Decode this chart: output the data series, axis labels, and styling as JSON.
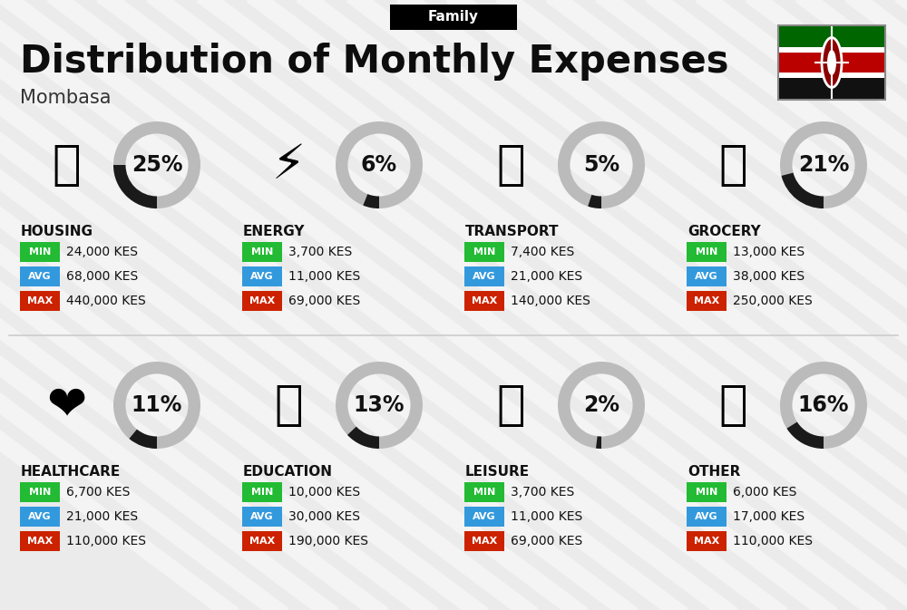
{
  "title": "Distribution of Monthly Expenses",
  "subtitle": "Mombasa",
  "category_label": "Family",
  "bg_color": "#ebebeb",
  "categories": [
    {
      "name": "HOUSING",
      "pct": 25,
      "min_val": "24,000 KES",
      "avg_val": "68,000 KES",
      "max_val": "440,000 KES",
      "icon": "🏢",
      "row": 0,
      "col": 0
    },
    {
      "name": "ENERGY",
      "pct": 6,
      "min_val": "3,700 KES",
      "avg_val": "11,000 KES",
      "max_val": "69,000 KES",
      "icon": "⚡",
      "row": 0,
      "col": 1
    },
    {
      "name": "TRANSPORT",
      "pct": 5,
      "min_val": "7,400 KES",
      "avg_val": "21,000 KES",
      "max_val": "140,000 KES",
      "icon": "🚌",
      "row": 0,
      "col": 2
    },
    {
      "name": "GROCERY",
      "pct": 21,
      "min_val": "13,000 KES",
      "avg_val": "38,000 KES",
      "max_val": "250,000 KES",
      "icon": "🛍",
      "row": 0,
      "col": 3
    },
    {
      "name": "HEALTHCARE",
      "pct": 11,
      "min_val": "6,700 KES",
      "avg_val": "21,000 KES",
      "max_val": "110,000 KES",
      "icon": "❤",
      "row": 1,
      "col": 0
    },
    {
      "name": "EDUCATION",
      "pct": 13,
      "min_val": "10,000 KES",
      "avg_val": "30,000 KES",
      "max_val": "190,000 KES",
      "icon": "🎓",
      "row": 1,
      "col": 1
    },
    {
      "name": "LEISURE",
      "pct": 2,
      "min_val": "3,700 KES",
      "avg_val": "11,000 KES",
      "max_val": "69,000 KES",
      "icon": "🛍",
      "row": 1,
      "col": 2
    },
    {
      "name": "OTHER",
      "pct": 16,
      "min_val": "6,000 KES",
      "avg_val": "17,000 KES",
      "max_val": "110,000 KES",
      "icon": "💰",
      "row": 1,
      "col": 3
    }
  ],
  "min_color": "#22bb33",
  "avg_color": "#3399dd",
  "max_color": "#cc2200",
  "ring_dark": "#1a1a1a",
  "ring_light": "#bbbbbb",
  "title_fontsize": 30,
  "subtitle_fontsize": 15,
  "pct_fontsize": 17,
  "cat_name_fontsize": 11,
  "val_fontsize": 10,
  "badge_fontsize": 8
}
